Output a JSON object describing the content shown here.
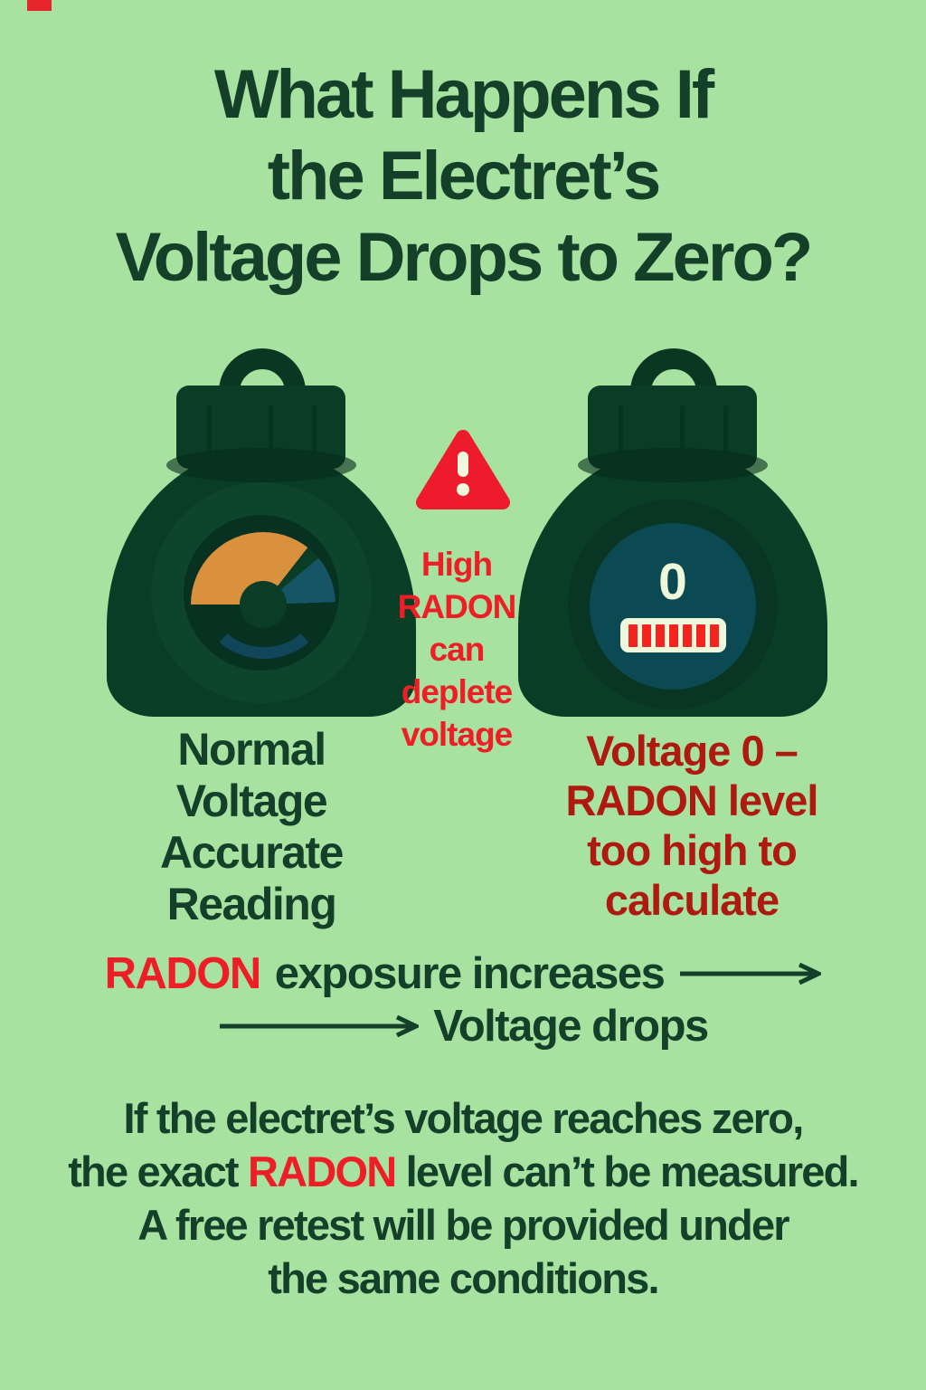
{
  "colors": {
    "background": "#A7E2A1",
    "dark_green_text": "#14402A",
    "bright_red": "#EE1E26",
    "dark_red": "#AE1A0F",
    "device_green": "#093D26",
    "gauge_orange": "#D9913E",
    "gauge_teal": "#155565",
    "display_teal": "#0B4A52",
    "cream": "#EFF8DB",
    "bar_red": "#F3231F"
  },
  "header": {
    "title_lines": [
      "What Happens If",
      "the Electret’s",
      "Voltage Drops to Zero?"
    ]
  },
  "warning": {
    "icon": "warning-triangle-icon",
    "lines": [
      "High",
      "RADON",
      "can",
      "deplete",
      "voltage"
    ]
  },
  "devices": {
    "left": {
      "caption_lines": [
        "Normal",
        "Voltage",
        "Accurate",
        "Reading"
      ]
    },
    "right": {
      "display_value": "0",
      "meter_bars": 7,
      "caption_lines": [
        "Voltage 0 –",
        "RADON level",
        "too high to",
        "calculate"
      ]
    }
  },
  "flow": {
    "line1_highlight": "RADON",
    "line1_text": " exposure increases",
    "line2_text": "Voltage drops"
  },
  "footer": {
    "line1": "If the electret’s voltage reaches zero,",
    "line2_prefix": "the exact ",
    "line2_highlight": "RADON",
    "line2_suffix": " level can’t be measured.",
    "line3": "A free retest will be provided under",
    "line4": "the same conditions."
  }
}
